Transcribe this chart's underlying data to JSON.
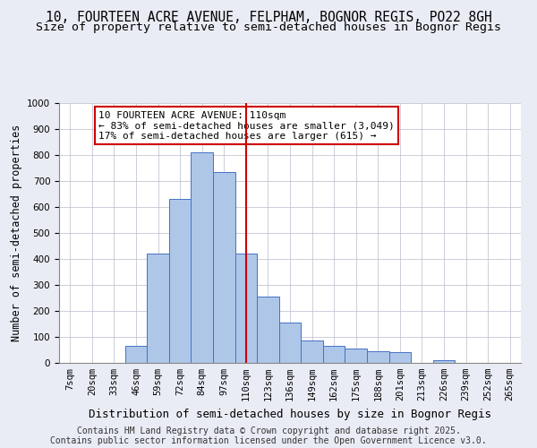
{
  "title_line1": "10, FOURTEEN ACRE AVENUE, FELPHAM, BOGNOR REGIS, PO22 8GH",
  "title_line2": "Size of property relative to semi-detached houses in Bognor Regis",
  "xlabel": "Distribution of semi-detached houses by size in Bognor Regis",
  "ylabel": "Number of semi-detached properties",
  "bins": [
    "7sqm",
    "20sqm",
    "33sqm",
    "46sqm",
    "59sqm",
    "72sqm",
    "84sqm",
    "97sqm",
    "110sqm",
    "123sqm",
    "136sqm",
    "149sqm",
    "162sqm",
    "175sqm",
    "188sqm",
    "201sqm",
    "213sqm",
    "226sqm",
    "239sqm",
    "252sqm",
    "265sqm"
  ],
  "bar_values": [
    0,
    0,
    0,
    65,
    420,
    630,
    810,
    735,
    420,
    255,
    155,
    85,
    65,
    55,
    45,
    40,
    0,
    10,
    0,
    0,
    0
  ],
  "bar_color": "#aec6e8",
  "bar_edge_color": "#4472c4",
  "vline_x": 8,
  "vline_color": "#cc0000",
  "annotation_text": "10 FOURTEEN ACRE AVENUE: 110sqm\n← 83% of semi-detached houses are smaller (3,049)\n17% of semi-detached houses are larger (615) →",
  "annotation_box_color": "#cc0000",
  "ylim": [
    0,
    1000
  ],
  "yticks": [
    0,
    100,
    200,
    300,
    400,
    500,
    600,
    700,
    800,
    900,
    1000
  ],
  "bg_color": "#eaecf5",
  "plot_bg_color": "#ffffff",
  "footer_line1": "Contains HM Land Registry data © Crown copyright and database right 2025.",
  "footer_line2": "Contains public sector information licensed under the Open Government Licence v3.0.",
  "title_fontsize": 10.5,
  "subtitle_fontsize": 9.5,
  "axis_label_fontsize": 8.5,
  "tick_fontsize": 7.5,
  "annotation_fontsize": 8,
  "footer_fontsize": 7
}
